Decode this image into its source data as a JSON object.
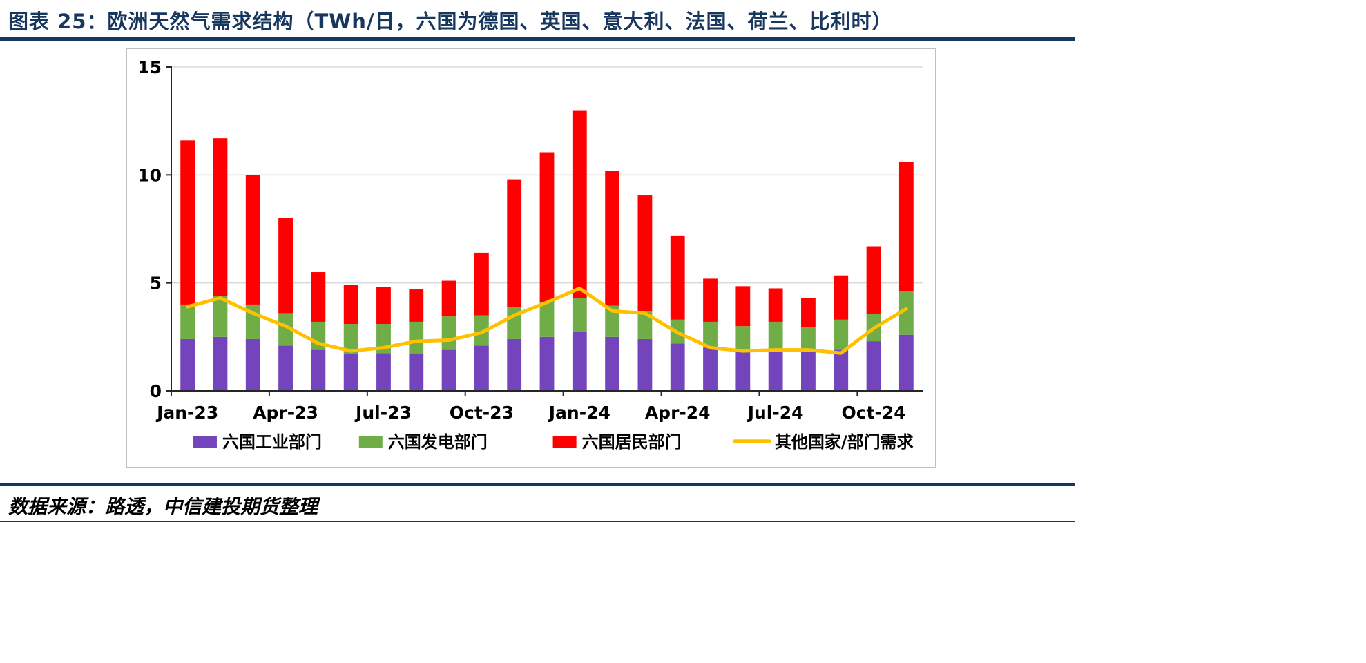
{
  "header": {
    "title": "图表 25：欧洲天然气需求结构（TWh/日，六国为德国、英国、意大利、法国、荷兰、比利时）"
  },
  "footer": {
    "source": "数据来源：路透，中信建投期货整理"
  },
  "colors": {
    "accent_navy": "#17375E",
    "industrial_purple": "#7344BC",
    "power_green": "#70AD47",
    "residential_red": "#FF0000",
    "other_demand_yellow": "#FFC000",
    "gridline_gray": "#D9D9D9",
    "axis_dark": "#262626"
  },
  "chart_data": {
    "type": "bar",
    "stacked": true,
    "title": "欧洲天然气需求结构（TWh/日）",
    "xlabel": "",
    "ylabel": "",
    "ylim": [
      0,
      15
    ],
    "yticks": [
      0,
      5,
      10,
      15
    ],
    "grid": true,
    "legend_position": "bottom",
    "x_tick_every": 3,
    "x": [
      "Jan-23",
      "Feb-23",
      "Mar-23",
      "Apr-23",
      "May-23",
      "Jun-23",
      "Jul-23",
      "Aug-23",
      "Sep-23",
      "Oct-23",
      "Nov-23",
      "Dec-23",
      "Jan-24",
      "Feb-24",
      "Mar-24",
      "Apr-24",
      "May-24",
      "Jun-24",
      "Jul-24",
      "Aug-24",
      "Sep-24",
      "Oct-24",
      "Nov-24"
    ],
    "x_tick_labels": [
      "Jan-23",
      "Apr-23",
      "Jul-23",
      "Oct-23",
      "Jan-24",
      "Apr-24",
      "Jul-24",
      "Oct-24"
    ],
    "series": [
      {
        "name": "六国工业部门",
        "type": "bar",
        "color": "#7344BC",
        "values": [
          2.4,
          2.5,
          2.4,
          2.1,
          1.9,
          1.7,
          1.75,
          1.7,
          1.9,
          2.1,
          2.4,
          2.5,
          2.75,
          2.5,
          2.4,
          2.2,
          2.0,
          1.9,
          1.85,
          1.8,
          1.9,
          2.3,
          2.6
        ]
      },
      {
        "name": "六国发电部门",
        "type": "bar",
        "color": "#70AD47",
        "values": [
          1.6,
          1.9,
          1.6,
          1.5,
          1.3,
          1.4,
          1.35,
          1.5,
          1.55,
          1.4,
          1.5,
          1.6,
          1.55,
          1.45,
          1.3,
          1.1,
          1.2,
          1.1,
          1.35,
          1.15,
          1.4,
          1.25,
          2.0
        ]
      },
      {
        "name": "六国居民部门",
        "type": "bar",
        "color": "#FF0000",
        "values": [
          7.6,
          7.3,
          6.0,
          4.4,
          2.3,
          1.8,
          1.7,
          1.5,
          1.65,
          2.9,
          5.9,
          6.95,
          8.7,
          6.25,
          5.35,
          3.9,
          2.0,
          1.85,
          1.55,
          1.35,
          2.05,
          3.15,
          6.0
        ]
      },
      {
        "name": "其他国家/部门需求",
        "type": "line",
        "color": "#FFC000",
        "values": [
          3.9,
          4.3,
          3.6,
          3.0,
          2.2,
          1.85,
          2.0,
          2.3,
          2.35,
          2.7,
          3.5,
          4.1,
          4.75,
          3.7,
          3.6,
          2.7,
          2.0,
          1.85,
          1.9,
          1.9,
          1.75,
          2.9,
          3.8
        ]
      }
    ]
  }
}
